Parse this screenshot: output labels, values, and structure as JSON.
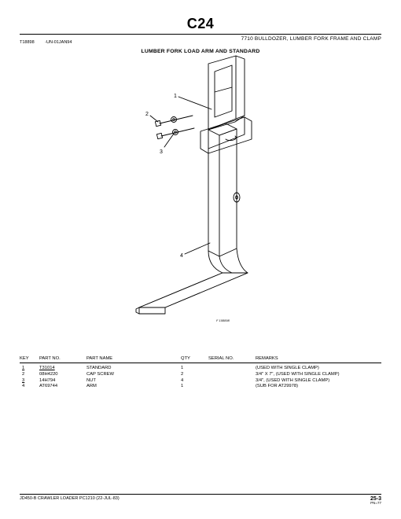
{
  "header": {
    "code": "C24",
    "product_line": "7710 BULLDOZER, LUMBER FORK FRAME AND CLAMP",
    "section_title": "LUMBER FORK LOAD ARM AND STANDARD"
  },
  "drawing": {
    "id": "T18898",
    "date_code": "-UN-01JAN94",
    "caption": "F 108898"
  },
  "columns": {
    "key": "KEY",
    "part_no": "PART NO.",
    "part_name": "PART NAME",
    "qty": "QTY",
    "serial": "SERIAL NO.",
    "remarks": "REMARKS"
  },
  "rows": [
    {
      "key": "1",
      "key_under": true,
      "part_no": "T31014",
      "pn_under": true,
      "part_name": "STANDARD",
      "qty": "1",
      "serial": "",
      "remarks": "(USED WITH SINGLE CLAMP)"
    },
    {
      "key": "2",
      "key_under": false,
      "part_no": "08H4220",
      "pn_under": false,
      "part_name": "CAP SCREW",
      "qty": "2",
      "serial": "",
      "remarks": "3/4\" X 7\", (USED WITH SINGLE CLAMP)"
    },
    {
      "key": "3",
      "key_under": true,
      "part_no": "14H794",
      "pn_under": false,
      "part_name": "NUT",
      "qty": "4",
      "serial": "",
      "remarks": "3/4\", (USED WITH SINGLE CLAMP)"
    },
    {
      "key": "4",
      "key_under": false,
      "part_no": "AT69744",
      "pn_under": false,
      "part_name": "ARM",
      "qty": "1",
      "serial": "",
      "remarks": "(SUB FOR AT29978)"
    }
  ],
  "footer": {
    "left": "JD450-B CRAWLER LOADER   PC1210     (22-JUL-83)",
    "page": "25-3",
    "sub": "PN=77"
  },
  "callouts": {
    "c1": "1",
    "c2": "2",
    "c3": "3",
    "c4": "4"
  }
}
